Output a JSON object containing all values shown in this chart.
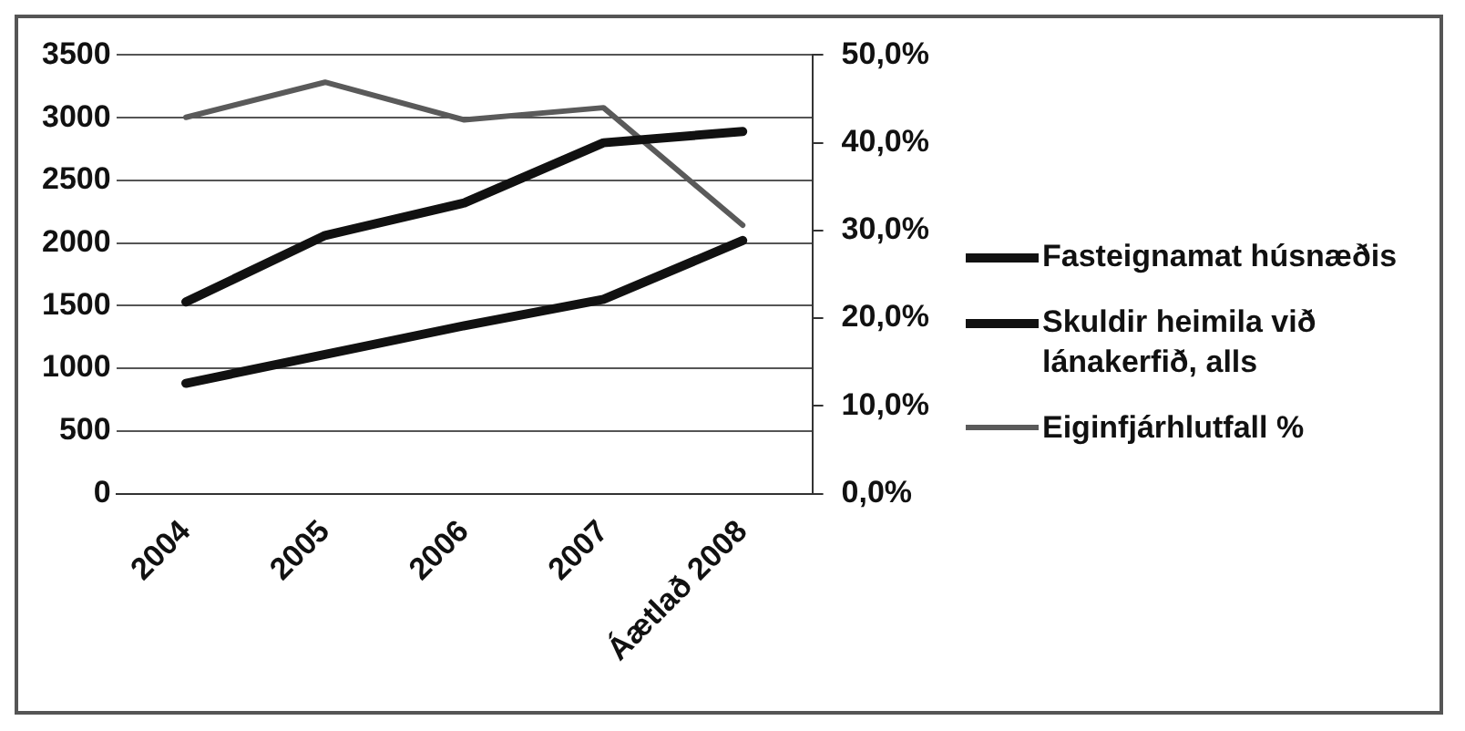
{
  "chart_data": {
    "type": "line",
    "categories": [
      "2004",
      "2005",
      "2006",
      "2007",
      "Áætlað 2008"
    ],
    "series": [
      {
        "name": "Fasteignamat húsnæðis",
        "color": "#111111",
        "values": [
          1530,
          2060,
          2320,
          2800,
          2890
        ]
      },
      {
        "name": "Skuldir heimila við lánakerfið, alls",
        "color": "#111111",
        "values": [
          880,
          1110,
          1340,
          1550,
          2020
        ]
      },
      {
        "name": "Eiginfjárhlutfall %",
        "color": "#5a5a5a",
        "axis": "y2",
        "values": [
          42.9,
          46.9,
          42.6,
          44.0,
          30.6
        ]
      }
    ],
    "ylim": [
      0,
      3500
    ],
    "yticks": [
      0,
      500,
      1000,
      1500,
      2000,
      2500,
      3000,
      3500
    ],
    "y2lim": [
      0,
      50
    ],
    "y2ticks": [
      {
        "value": 0,
        "label": "0,0%"
      },
      {
        "value": 10,
        "label": "10,0%"
      },
      {
        "value": 20,
        "label": "20,0%"
      },
      {
        "value": 30,
        "label": "30,0%"
      },
      {
        "value": 40,
        "label": "40,0%"
      },
      {
        "value": 50,
        "label": "50,0%"
      }
    ],
    "grid": "y",
    "legend": "right",
    "marker": "none",
    "line_style": "solid"
  }
}
